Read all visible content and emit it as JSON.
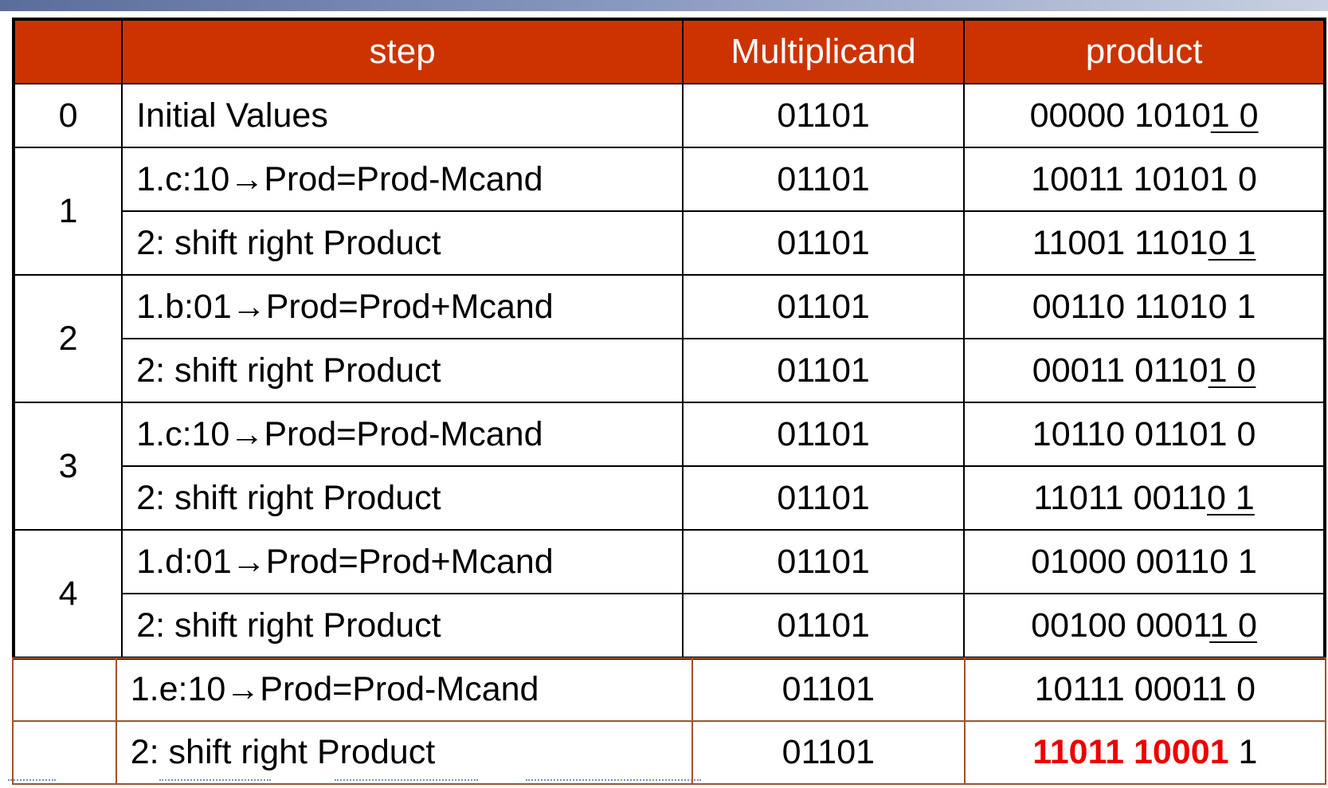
{
  "header": {
    "num": "",
    "step": "step",
    "multiplicand": "Multiplicand",
    "product": "product"
  },
  "rows": [
    {
      "num": "0",
      "step": "Initial Values",
      "multiplicand": "01101",
      "product_a": "00000 1010",
      "product_b": "1 0",
      "product_b_underline": true
    },
    {
      "num": "1",
      "step": "1.c:10→Prod=Prod-Mcand",
      "multiplicand": "01101",
      "product_a": "10011 10101 0",
      "product_b": ""
    },
    {
      "num": "",
      "step": "2: shift right Product",
      "multiplicand": "01101",
      "product_a": "11001 1101",
      "product_b": "0 1",
      "product_b_underline": true
    },
    {
      "num": "2",
      "step": "1.b:01→Prod=Prod+Mcand",
      "multiplicand": "01101",
      "product_a": "00110 11010 1",
      "product_b": ""
    },
    {
      "num": "",
      "step": "2: shift right Product",
      "multiplicand": "01101",
      "product_a": "00011 0110",
      "product_b": "1 0",
      "product_b_underline": true
    },
    {
      "num": "3",
      "step": "1.c:10→Prod=Prod-Mcand",
      "multiplicand": "01101",
      "product_a": "10110 01101 0",
      "product_b": ""
    },
    {
      "num": "",
      "step": "2: shift right Product",
      "multiplicand": "01101",
      "product_a": "11011 0011",
      "product_b": "0 1",
      "product_b_underline": true
    },
    {
      "num": "4",
      "step": "1.d:01→Prod=Prod+Mcand",
      "multiplicand": "01101",
      "product_a": "01000 00110 1",
      "product_b": ""
    },
    {
      "num": "",
      "step": "2: shift right Product",
      "multiplicand": "01101",
      "product_a": "00100 0001",
      "product_b": "1 0",
      "product_b_underline": true
    }
  ],
  "extra_rows": [
    {
      "num": "",
      "step": "1.e:10→Prod=Prod-Mcand",
      "multiplicand": "01101",
      "product": "10111 00011 0"
    },
    {
      "num": "",
      "step": "2: shift right Product",
      "multiplicand": "01101",
      "product_red": "11011 10001",
      "product_rest": " 1"
    }
  ],
  "colors": {
    "header_bg": "#cc3300",
    "header_text": "#ffffff",
    "extra_border": "#a0522d",
    "highlight": "#ee0000"
  }
}
